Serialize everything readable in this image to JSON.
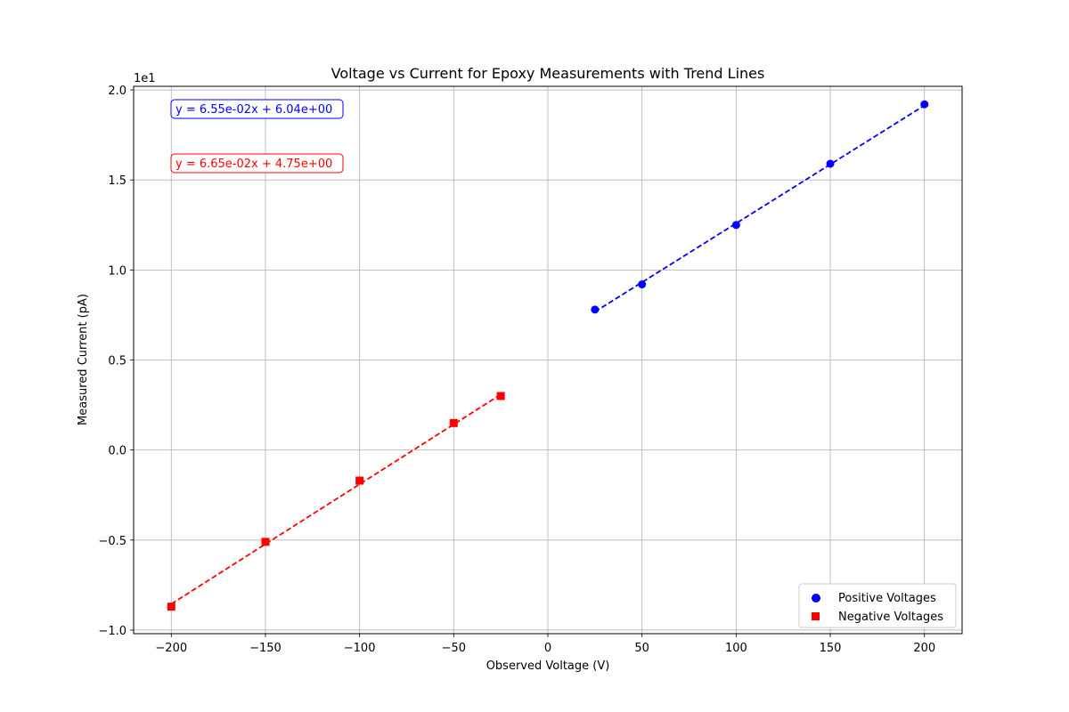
{
  "chart_data": {
    "type": "scatter",
    "title": "Voltage vs Current for Epoxy Measurements with Trend Lines",
    "xlabel": "Observed Voltage (V)",
    "ylabel": "Measured Current (pA)",
    "y_offset_label": "1e1",
    "xlim": [
      -220,
      220
    ],
    "ylim": [
      -10.2,
      20.2
    ],
    "xticks": [
      -200,
      -150,
      -100,
      -50,
      0,
      50,
      100,
      150,
      200
    ],
    "xtick_labels": [
      "−200",
      "−150",
      "−100",
      "−50",
      "0",
      "50",
      "100",
      "150",
      "200"
    ],
    "yticks": [
      -10,
      -5,
      0,
      5,
      10,
      15,
      20
    ],
    "ytick_labels": [
      "−1.0",
      "−0.5",
      "0.0",
      "0.5",
      "1.0",
      "1.5",
      "2.0"
    ],
    "grid": true,
    "legend_position": "lower-right",
    "series": [
      {
        "name": "Positive Voltages",
        "marker": "circle",
        "color": "#0000ff",
        "x": [
          25,
          50,
          100,
          150,
          200
        ],
        "y": [
          7.8,
          9.2,
          12.5,
          15.9,
          19.2
        ],
        "trend": {
          "slope": 0.0655,
          "intercept": 6.04,
          "x_range": [
            25,
            200
          ],
          "label": "y = 6.55e-02x + 6.04e+00"
        }
      },
      {
        "name": "Negative Voltages",
        "marker": "square",
        "color": "#ff0000",
        "x": [
          -200,
          -150,
          -100,
          -50,
          -25
        ],
        "y": [
          -8.7,
          -5.1,
          -1.7,
          1.5,
          3.0
        ],
        "trend": {
          "slope": 0.0665,
          "intercept": 4.75,
          "x_range": [
            -200,
            -25
          ],
          "label": "y = 6.65e-02x + 4.75e+00"
        }
      }
    ]
  }
}
